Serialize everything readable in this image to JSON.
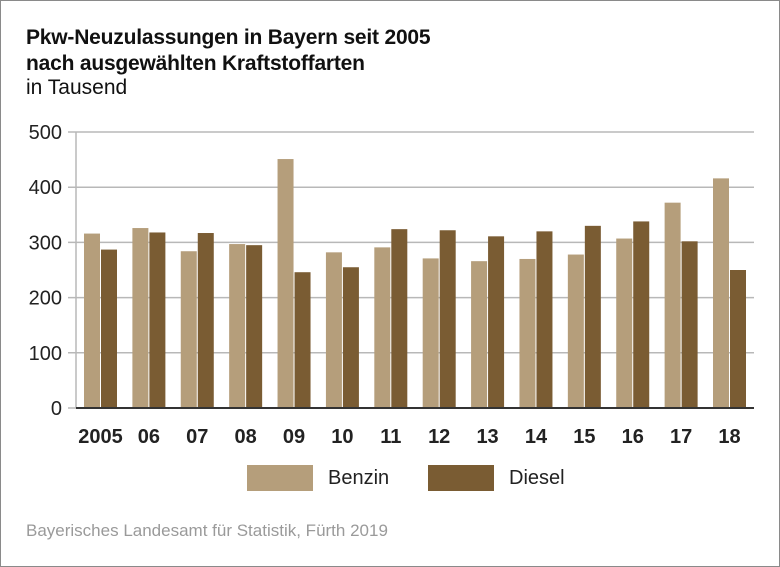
{
  "title_line1": "Pkw-Neuzulassungen in Bayern seit 2005",
  "title_line2": "nach ausgewählten Kraftstoffarten",
  "subtitle": "in Tausend",
  "source": "Bayerisches Landesamt für Statistik, Fürth 2019",
  "colors": {
    "benzin": "#b59e7b",
    "diesel": "#7a5c33",
    "grid": "#b8b8b8",
    "axis": "#333333"
  },
  "chart_data": {
    "type": "bar",
    "title": "Pkw-Neuzulassungen in Bayern seit 2005 nach ausgewählten Kraftstoffarten",
    "subtitle": "in Tausend",
    "xlabel": "",
    "ylabel": "in Tausend",
    "categories": [
      "2005",
      "06",
      "07",
      "08",
      "09",
      "10",
      "11",
      "12",
      "13",
      "14",
      "15",
      "16",
      "17",
      "18"
    ],
    "series": [
      {
        "name": "Benzin",
        "values": [
          316,
          326,
          284,
          297,
          451,
          282,
          291,
          271,
          266,
          270,
          278,
          307,
          372,
          416
        ]
      },
      {
        "name": "Diesel",
        "values": [
          287,
          318,
          317,
          295,
          246,
          255,
          324,
          322,
          311,
          320,
          330,
          338,
          302,
          250
        ]
      }
    ],
    "ylim": [
      0,
      500
    ],
    "yticks": [
      0,
      100,
      200,
      300,
      400,
      500
    ],
    "grid": true,
    "legend": {
      "placement": "bottom-center",
      "entries": [
        "Benzin",
        "Diesel"
      ]
    }
  }
}
